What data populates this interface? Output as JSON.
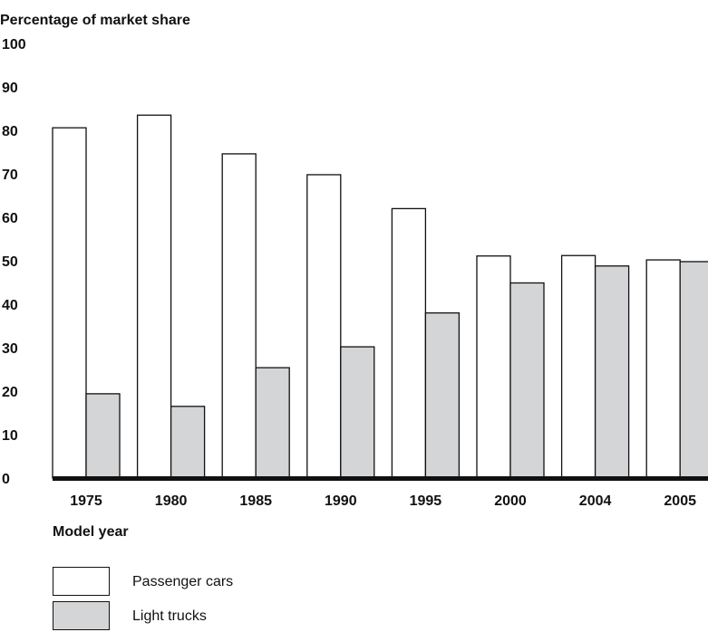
{
  "chart_data": {
    "type": "bar",
    "title": "",
    "ylabel": "Percentage of market share",
    "xlabel": "Model year",
    "ylim": [
      0,
      100
    ],
    "yticks": [
      0,
      10,
      20,
      30,
      40,
      50,
      60,
      70,
      80,
      90,
      100
    ],
    "grid": false,
    "legend_position": "bottom-left",
    "categories": [
      "1975",
      "1980",
      "1985",
      "1990",
      "1995",
      "2000",
      "2004",
      "2005"
    ],
    "series": [
      {
        "name": "Passenger cars",
        "color": "#ffffff",
        "values": [
          80.6,
          83.5,
          74.6,
          69.8,
          62.0,
          51.1,
          51.2,
          50.2
        ]
      },
      {
        "name": "Light trucks",
        "color": "#d4d5d7",
        "values": [
          19.4,
          16.5,
          25.4,
          30.2,
          38.0,
          44.9,
          48.8,
          49.8
        ]
      }
    ]
  }
}
